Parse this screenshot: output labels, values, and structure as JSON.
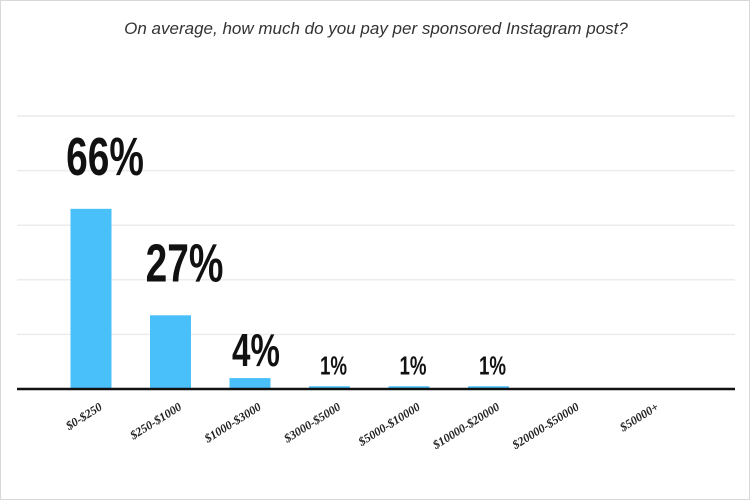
{
  "chart_data": {
    "type": "bar",
    "title": "On average, how much do you pay per sponsored Instagram post?",
    "categories": [
      "$0-$250",
      "$250-$1000",
      "$1000-$3000",
      "$3000-$5000",
      "$5000-$10000",
      "$10000-$20000",
      "$20000-$50000",
      "$50000+"
    ],
    "values": [
      66,
      27,
      4,
      1,
      1,
      1,
      0,
      0
    ],
    "data_labels": [
      "66%",
      "27%",
      "4%",
      "1%",
      "1%",
      "1%",
      "",
      ""
    ],
    "xlabel": "",
    "ylabel": "",
    "ylim": [
      0,
      100
    ],
    "grid": true,
    "bar_color": "#4ac0fa"
  }
}
